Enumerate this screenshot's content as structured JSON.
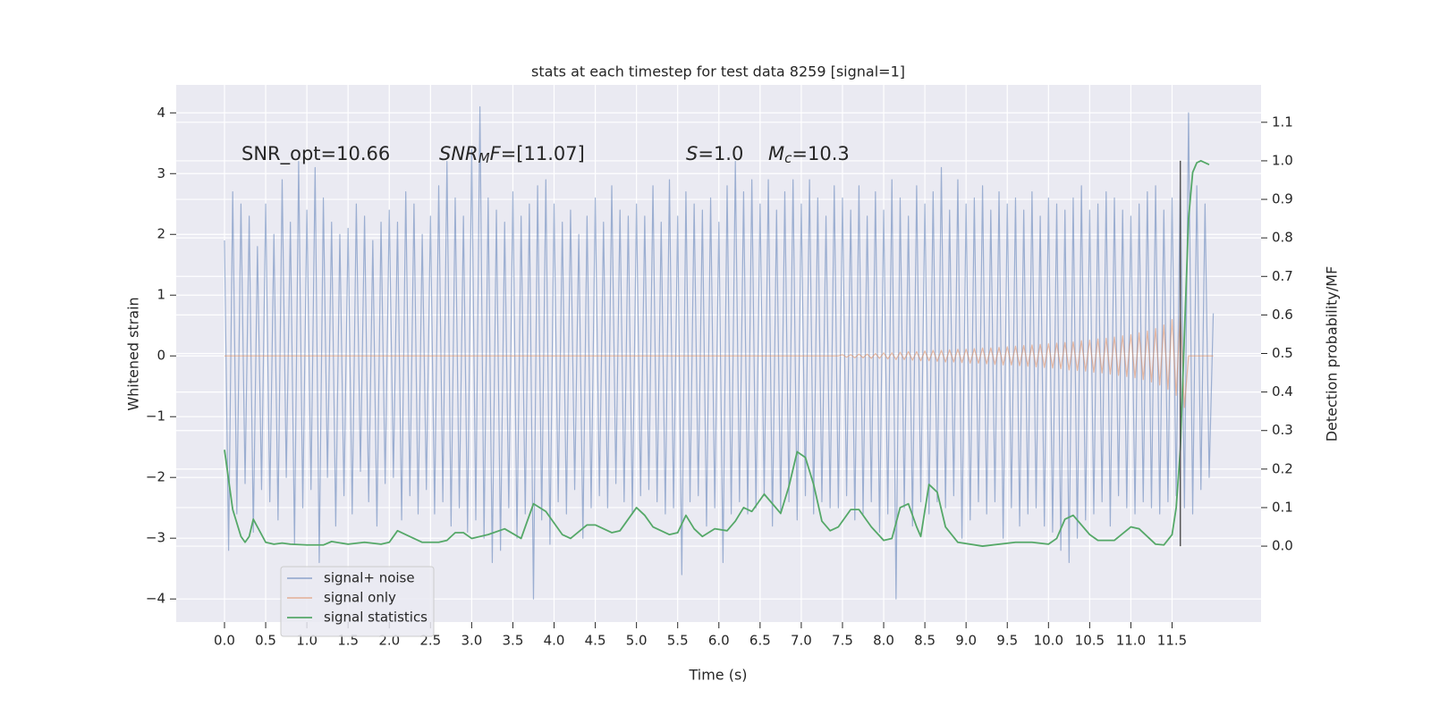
{
  "chart_data": {
    "type": "line",
    "title": "stats at each timestep for test data 8259 [signal=1]",
    "x_label": "Time (s)",
    "y_label": "Whitened strain",
    "y2_label": "Detection probability/MF",
    "annotations": [
      {
        "parts": [
          {
            "text": "SNR_opt=10.66",
            "style": "normal"
          }
        ]
      },
      {
        "parts": [
          {
            "text": "SNR",
            "style": "italic"
          },
          {
            "text": "M",
            "style": "sub"
          },
          {
            "text": "F",
            "style": "italic"
          },
          {
            "text": "=[11.07]",
            "style": "normal"
          }
        ]
      },
      {
        "parts": [
          {
            "text": "S",
            "style": "italic"
          },
          {
            "text": "=1.0",
            "style": "normal"
          }
        ]
      },
      {
        "parts": [
          {
            "text": "M",
            "style": "italic"
          },
          {
            "text": "c",
            "style": "sub"
          },
          {
            "text": "=10.3",
            "style": "normal"
          }
        ]
      }
    ],
    "x": [
      0,
      0.05,
      0.1,
      0.15,
      0.2,
      0.25,
      0.3,
      0.35,
      0.4,
      0.45,
      0.5,
      0.55,
      0.6,
      0.65,
      0.7,
      0.75,
      0.8,
      0.85,
      0.9,
      0.95,
      1,
      1.05,
      1.1,
      1.15,
      1.2,
      1.25,
      1.3,
      1.35,
      1.4,
      1.45,
      1.5,
      1.55,
      1.6,
      1.65,
      1.7,
      1.75,
      1.8,
      1.85,
      1.9,
      1.95,
      2,
      2.05,
      2.1,
      2.15,
      2.2,
      2.25,
      2.3,
      2.35,
      2.4,
      2.45,
      2.5,
      2.55,
      2.6,
      2.65,
      2.7,
      2.75,
      2.8,
      2.85,
      2.9,
      2.95,
      3,
      3.05,
      3.1,
      3.15,
      3.2,
      3.25,
      3.3,
      3.35,
      3.4,
      3.45,
      3.5,
      3.55,
      3.6,
      3.65,
      3.7,
      3.75,
      3.8,
      3.85,
      3.9,
      3.95,
      4,
      4.05,
      4.1,
      4.15,
      4.2,
      4.25,
      4.3,
      4.35,
      4.4,
      4.45,
      4.5,
      4.55,
      4.6,
      4.65,
      4.7,
      4.75,
      4.8,
      4.85,
      4.9,
      4.95,
      5,
      5.05,
      5.1,
      5.15,
      5.2,
      5.25,
      5.3,
      5.35,
      5.4,
      5.45,
      5.5,
      5.55,
      5.6,
      5.65,
      5.7,
      5.75,
      5.8,
      5.85,
      5.9,
      5.95,
      6,
      6.05,
      6.1,
      6.15,
      6.2,
      6.25,
      6.3,
      6.35,
      6.4,
      6.45,
      6.5,
      6.55,
      6.6,
      6.65,
      6.7,
      6.75,
      6.8,
      6.85,
      6.9,
      6.95,
      7,
      7.05,
      7.1,
      7.15,
      7.2,
      7.25,
      7.3,
      7.35,
      7.4,
      7.45,
      7.5,
      7.55,
      7.6,
      7.65,
      7.7,
      7.75,
      7.8,
      7.85,
      7.9,
      7.95,
      8,
      8.05,
      8.1,
      8.15,
      8.2,
      8.25,
      8.3,
      8.35,
      8.4,
      8.45,
      8.5,
      8.55,
      8.6,
      8.65,
      8.7,
      8.75,
      8.8,
      8.85,
      8.9,
      8.95,
      9,
      9.05,
      9.1,
      9.15,
      9.2,
      9.25,
      9.3,
      9.35,
      9.4,
      9.45,
      9.5,
      9.55,
      9.6,
      9.65,
      9.7,
      9.75,
      9.8,
      9.85,
      9.9,
      9.95,
      10,
      10.05,
      10.1,
      10.15,
      10.2,
      10.25,
      10.3,
      10.35,
      10.4,
      10.45,
      10.5,
      10.55,
      10.6,
      10.65,
      10.7,
      10.75,
      10.8,
      10.85,
      10.9,
      10.95,
      11,
      11.05,
      11.1,
      11.15,
      11.2,
      11.25,
      11.3,
      11.35,
      11.4,
      11.45,
      11.5,
      11.55,
      11.6,
      11.65,
      11.7,
      11.75,
      11.8,
      11.85,
      11.9,
      11.95,
      12
    ],
    "series": [
      {
        "name": "signal+ noise",
        "color": "#4c72b0",
        "opacity": 0.5,
        "values": [
          1.9,
          -3.2,
          2.7,
          -2.6,
          2.5,
          -2.1,
          2.3,
          -2.9,
          1.8,
          -2.2,
          2.5,
          -2.4,
          2.0,
          -2.7,
          2.9,
          -2.0,
          2.2,
          -3.1,
          3.2,
          -2.5,
          2.4,
          -2.2,
          3.1,
          -3.4,
          2.6,
          -2.0,
          2.2,
          -2.8,
          2.0,
          -2.3,
          2.1,
          -2.6,
          2.5,
          -1.9,
          2.3,
          -2.4,
          1.9,
          -2.8,
          2.2,
          -2.1,
          2.4,
          -2.0,
          2.2,
          -2.7,
          2.7,
          -2.3,
          2.5,
          -2.6,
          2.0,
          -2.2,
          2.3,
          -2.6,
          2.8,
          -2.4,
          3.2,
          -2.8,
          2.6,
          -2.5,
          2.3,
          -2.9,
          3.4,
          -2.7,
          4.1,
          -3.0,
          2.6,
          -3.4,
          2.4,
          -3.2,
          2.2,
          -2.5,
          2.7,
          -3.0,
          2.3,
          -2.6,
          2.5,
          -4.0,
          2.8,
          -2.7,
          2.9,
          -3.1,
          2.5,
          -2.4,
          2.2,
          -2.6,
          2.4,
          -2.2,
          2.0,
          -3.0,
          2.3,
          -2.5,
          2.6,
          -2.3,
          2.2,
          -2.5,
          2.8,
          -2.1,
          2.4,
          -2.4,
          2.3,
          -2.6,
          2.5,
          -2.3,
          2.3,
          -2.2,
          2.8,
          -2.4,
          2.2,
          -2.6,
          2.9,
          -2.5,
          2.3,
          -3.6,
          2.7,
          -2.4,
          2.5,
          -2.3,
          2.4,
          -2.8,
          2.6,
          -2.5,
          2.2,
          -3.4,
          2.8,
          -2.6,
          3.2,
          -2.4,
          2.7,
          -2.6,
          2.9,
          -2.5,
          2.5,
          -2.3,
          2.9,
          -2.8,
          2.4,
          -2.6,
          2.7,
          -2.4,
          2.9,
          -2.7,
          2.5,
          -2.3,
          2.9,
          -2.6,
          2.6,
          -2.4,
          2.3,
          -2.5,
          2.8,
          -2.5,
          2.6,
          -2.3,
          2.4,
          -2.7,
          2.8,
          -2.6,
          2.3,
          -2.4,
          2.7,
          -2.9,
          2.4,
          -2.6,
          2.9,
          -4.0,
          2.6,
          -2.5,
          2.3,
          -2.8,
          2.8,
          -2.4,
          2.5,
          -2.6,
          2.7,
          -2.4,
          3.1,
          -2.5,
          2.4,
          -2.3,
          2.9,
          -3.0,
          2.5,
          -2.7,
          2.6,
          -2.4,
          2.8,
          -2.6,
          2.4,
          -2.4,
          2.7,
          -3.0,
          2.5,
          -2.5,
          2.6,
          -2.8,
          2.4,
          -2.6,
          2.7,
          -2.5,
          2.3,
          -2.8,
          2.6,
          -2.9,
          2.5,
          -3.2,
          2.4,
          -3.4,
          2.6,
          -3.0,
          2.8,
          -2.7,
          2.4,
          -2.6,
          2.5,
          -2.4,
          2.7,
          -2.8,
          2.6,
          -2.3,
          2.4,
          -2.5,
          2.3,
          -2.6,
          2.5,
          -2.4,
          2.7,
          -2.5,
          2.8,
          -2.6,
          2.4,
          -2.4,
          2.6,
          -2.3,
          3.0,
          -2.5,
          4.0,
          -2.6,
          2.8,
          -2.2,
          2.5,
          -2.0,
          0.7
        ]
      },
      {
        "name": "signal only",
        "color": "#dd8452",
        "opacity": 0.5,
        "values": [
          0,
          0,
          0,
          0,
          0,
          0,
          0,
          0,
          0,
          0,
          0,
          0,
          0,
          0,
          0,
          0,
          0,
          0,
          0,
          0,
          0,
          0,
          0,
          0,
          0,
          0,
          0,
          0,
          0,
          0,
          0,
          0,
          0,
          0,
          0,
          0,
          0,
          0,
          0,
          0,
          0,
          0,
          0,
          0,
          0,
          0,
          0,
          0,
          0,
          0,
          0,
          0,
          0,
          0,
          0,
          0,
          0,
          0,
          0,
          0,
          0,
          0,
          0,
          0,
          0,
          0,
          0,
          0,
          0,
          0,
          0,
          0,
          0,
          0,
          0,
          0,
          0,
          0,
          0,
          0,
          0,
          0,
          0,
          0,
          0,
          0,
          0,
          0,
          0,
          0,
          0,
          0,
          0,
          0,
          0,
          0,
          0,
          0,
          0,
          0,
          0,
          0,
          0,
          0,
          0,
          0,
          0,
          0,
          0,
          0,
          0,
          0,
          0,
          0,
          0,
          0,
          0,
          0,
          0,
          0,
          0,
          0,
          0,
          0,
          0,
          0,
          0,
          0,
          0,
          0,
          0,
          0,
          0,
          0,
          0,
          0,
          0,
          0,
          0,
          0,
          0,
          0,
          0,
          0,
          0,
          0,
          0,
          0,
          0,
          0,
          0.02,
          -0.02,
          0.02,
          -0.03,
          0.03,
          -0.03,
          0.03,
          -0.04,
          0.04,
          -0.04,
          0.05,
          -0.05,
          0.05,
          -0.06,
          0.06,
          -0.06,
          0.07,
          -0.07,
          0.07,
          -0.08,
          0.08,
          -0.08,
          0.09,
          -0.09,
          0.09,
          -0.1,
          0.1,
          -0.1,
          0.11,
          -0.11,
          0.11,
          -0.12,
          0.12,
          -0.12,
          0.13,
          -0.13,
          0.13,
          -0.14,
          0.14,
          -0.15,
          0.15,
          -0.15,
          0.16,
          -0.16,
          0.17,
          -0.17,
          0.18,
          -0.18,
          0.19,
          -0.19,
          0.2,
          -0.2,
          0.21,
          -0.21,
          0.22,
          -0.23,
          0.23,
          -0.24,
          0.25,
          -0.25,
          0.26,
          -0.27,
          0.28,
          -0.28,
          0.29,
          -0.3,
          0.31,
          -0.32,
          0.33,
          -0.34,
          0.35,
          -0.36,
          0.38,
          -0.39,
          0.41,
          -0.43,
          0.45,
          -0.48,
          0.51,
          -0.55,
          0.6,
          -0.65,
          0.72,
          -0.85,
          0,
          0,
          0,
          0,
          0,
          0,
          0
        ]
      },
      {
        "name": "signal statistics",
        "color": "#55a868",
        "axis": "y2",
        "x": [
          0,
          0.1,
          0.2,
          0.25,
          0.3,
          0.35,
          0.5,
          0.6,
          0.7,
          0.8,
          1.0,
          1.2,
          1.3,
          1.5,
          1.7,
          1.9,
          2.0,
          2.1,
          2.2,
          2.4,
          2.6,
          2.7,
          2.8,
          2.9,
          3.0,
          3.2,
          3.4,
          3.6,
          3.7,
          3.75,
          3.9,
          4.1,
          4.2,
          4.4,
          4.5,
          4.7,
          4.8,
          5.0,
          5.1,
          5.2,
          5.4,
          5.5,
          5.6,
          5.7,
          5.8,
          5.95,
          6.1,
          6.2,
          6.3,
          6.4,
          6.55,
          6.65,
          6.75,
          6.85,
          6.95,
          7.05,
          7.15,
          7.25,
          7.35,
          7.45,
          7.6,
          7.7,
          7.85,
          8.0,
          8.1,
          8.2,
          8.3,
          8.4,
          8.45,
          8.55,
          8.65,
          8.75,
          8.9,
          9.2,
          9.6,
          9.8,
          10.0,
          10.1,
          10.2,
          10.3,
          10.5,
          10.6,
          10.8,
          11.0,
          11.1,
          11.3,
          11.4,
          11.5,
          11.55,
          11.6,
          11.65,
          11.7,
          11.75,
          11.8,
          11.85,
          11.9,
          11.95
        ],
        "values": [
          0.25,
          0.095,
          0.025,
          0.01,
          0.025,
          0.07,
          0.01,
          0.005,
          0.008,
          0.005,
          0.003,
          0.003,
          0.012,
          0.005,
          0.01,
          0.005,
          0.01,
          0.04,
          0.03,
          0.01,
          0.01,
          0.015,
          0.035,
          0.035,
          0.02,
          0.03,
          0.045,
          0.02,
          0.08,
          0.11,
          0.09,
          0.03,
          0.02,
          0.055,
          0.055,
          0.035,
          0.04,
          0.1,
          0.08,
          0.05,
          0.03,
          0.035,
          0.08,
          0.045,
          0.025,
          0.045,
          0.04,
          0.065,
          0.1,
          0.09,
          0.135,
          0.11,
          0.085,
          0.155,
          0.245,
          0.23,
          0.16,
          0.065,
          0.04,
          0.05,
          0.095,
          0.095,
          0.05,
          0.015,
          0.02,
          0.1,
          0.11,
          0.05,
          0.025,
          0.16,
          0.14,
          0.05,
          0.01,
          0.0,
          0.01,
          0.01,
          0.005,
          0.02,
          0.07,
          0.08,
          0.03,
          0.015,
          0.015,
          0.05,
          0.045,
          0.005,
          0.003,
          0.03,
          0.1,
          0.25,
          0.55,
          0.85,
          0.97,
          0.995,
          1.0,
          0.995,
          0.99
        ]
      }
    ],
    "vline": {
      "x": 11.6,
      "y2_from": 0.0,
      "y2_to": 1.0,
      "color": "#555555"
    },
    "xlim": [
      -0.586,
      12.58
    ],
    "ylim": [
      -4.38,
      4.46
    ],
    "y2lim": [
      -0.197,
      1.197
    ],
    "xticks": [
      {
        "value": 0,
        "label": "0.0"
      },
      {
        "value": 0.5,
        "label": "0.5"
      },
      {
        "value": 1,
        "label": "1.0"
      },
      {
        "value": 1.5,
        "label": "1.5"
      },
      {
        "value": 2,
        "label": "2.0"
      },
      {
        "value": 2.5,
        "label": "2.5"
      },
      {
        "value": 3,
        "label": "3.0"
      },
      {
        "value": 3.5,
        "label": "3.5"
      },
      {
        "value": 4,
        "label": "4.0"
      },
      {
        "value": 4.5,
        "label": "4.5"
      },
      {
        "value": 5,
        "label": "5.0"
      },
      {
        "value": 5.5,
        "label": "5.5"
      },
      {
        "value": 6,
        "label": "6.0"
      },
      {
        "value": 6.5,
        "label": "6.5"
      },
      {
        "value": 7,
        "label": "7.0"
      },
      {
        "value": 7.5,
        "label": "7.5"
      },
      {
        "value": 8,
        "label": "8.0"
      },
      {
        "value": 8.5,
        "label": "8.5"
      },
      {
        "value": 9,
        "label": "9.0"
      },
      {
        "value": 9.5,
        "label": "9.5"
      },
      {
        "value": 10,
        "label": "10.0"
      },
      {
        "value": 10.5,
        "label": "10.5"
      },
      {
        "value": 11,
        "label": "11.0"
      },
      {
        "value": 11.5,
        "label": "11.5"
      }
    ],
    "yticks": [
      {
        "value": -4,
        "label": "−4"
      },
      {
        "value": -3,
        "label": "−3"
      },
      {
        "value": -2,
        "label": "−2"
      },
      {
        "value": -1,
        "label": "−1"
      },
      0,
      1,
      2,
      3,
      4
    ],
    "y2ticks": [
      {
        "value": 0,
        "label": "0.0"
      },
      {
        "value": 0.1,
        "label": "0.1"
      },
      {
        "value": 0.2,
        "label": "0.2"
      },
      {
        "value": 0.3,
        "label": "0.3"
      },
      {
        "value": 0.4,
        "label": "0.4"
      },
      {
        "value": 0.5,
        "label": "0.5"
      },
      {
        "value": 0.6,
        "label": "0.6"
      },
      {
        "value": 0.7,
        "label": "0.7"
      },
      {
        "value": 0.8,
        "label": "0.8"
      },
      {
        "value": 0.9,
        "label": "0.9"
      },
      {
        "value": 1.0,
        "label": "1.0"
      },
      {
        "value": 1.1,
        "label": "1.1"
      }
    ],
    "grid": true,
    "legend": "lower left"
  }
}
